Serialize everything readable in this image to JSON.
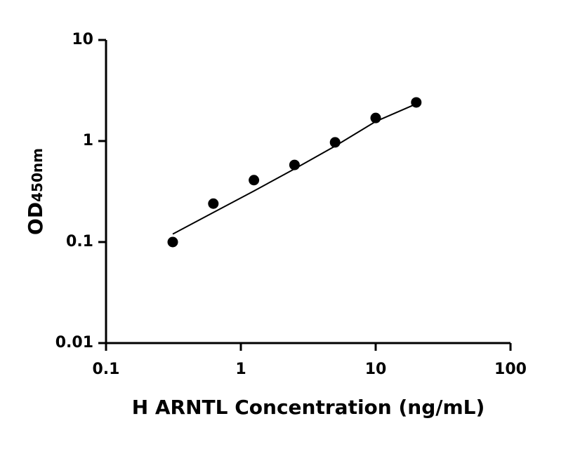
{
  "chart_data": {
    "type": "scatter",
    "x_label": "H ARNTL Concentration (ng/mL)",
    "y_label": "OD",
    "y_label_subscript": "450nm",
    "x": [
      0.3125,
      0.625,
      1.25,
      2.5,
      5,
      10,
      20
    ],
    "series": [
      {
        "color": "#000000",
        "values": [
          0.1,
          0.24,
          0.41,
          0.58,
          0.97,
          1.69,
          2.41
        ]
      }
    ],
    "fit": {
      "color": "#000000",
      "x": [
        0.3125,
        0.625,
        1.25,
        2.5,
        5,
        10,
        20
      ],
      "values": [
        0.12,
        0.196,
        0.32,
        0.53,
        0.89,
        1.56,
        2.33
      ]
    },
    "xscale": "log",
    "yscale": "log",
    "xlim": [
      0.1,
      100
    ],
    "ylim": [
      0.01,
      10
    ],
    "xticks": [
      0.1,
      1,
      10,
      100
    ],
    "yticks": [
      0.01,
      0.1,
      1,
      10
    ],
    "grid": false
  }
}
